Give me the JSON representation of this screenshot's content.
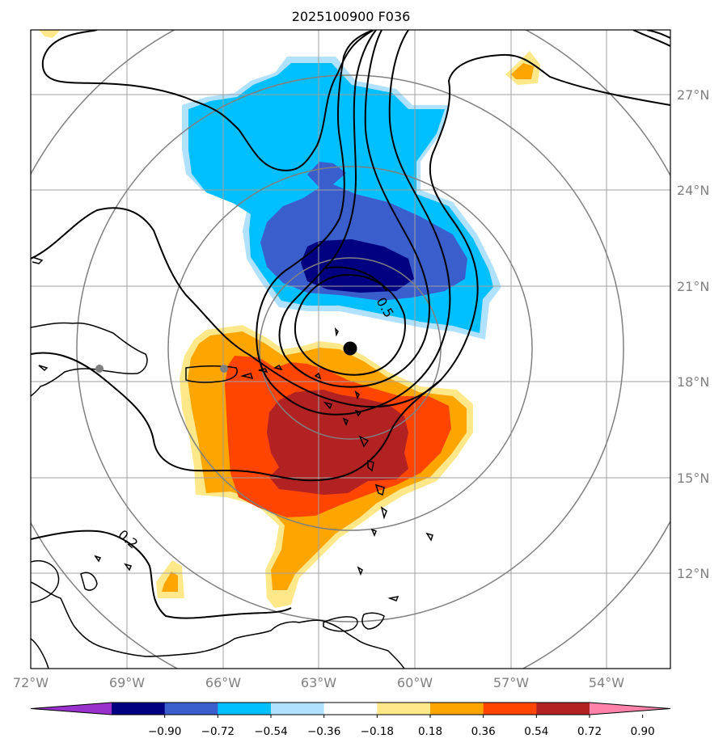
{
  "title": "2025100900 F036",
  "map": {
    "lon_ticks": [
      "72°W",
      "69°W",
      "66°W",
      "63°W",
      "60°W",
      "57°W",
      "54°W"
    ],
    "lat_ticks": [
      "27°N",
      "24°N",
      "21°N",
      "18°N",
      "15°N",
      "12°N"
    ],
    "contour_labels": [
      "0.5",
      "0.2"
    ],
    "storm_center": {
      "lon": -62.1,
      "lat": 19.0
    },
    "ring_count": 4
  },
  "colorbar": {
    "ticks": [
      "−0.90",
      "−0.72",
      "−0.54",
      "−0.36",
      "−0.18",
      "0.18",
      "0.36",
      "0.54",
      "0.72",
      "0.90"
    ],
    "colors": [
      "#9932cc",
      "#000080",
      "#3a5fcd",
      "#00bfff",
      "#b0e2ff",
      "#ffffff",
      "#ffe88a",
      "#ffa500",
      "#ff4500",
      "#b22222",
      "#ff82ab"
    ]
  },
  "fill_colors": {
    "neg_light": "#b0e2ff",
    "neg_mid": "#00bfff",
    "neg_strong": "#3a5fcd",
    "neg_max": "#000080",
    "pos_light": "#ffe88a",
    "pos_mid": "#ffa500",
    "pos_strong": "#ff4500",
    "pos_max": "#b22222"
  }
}
